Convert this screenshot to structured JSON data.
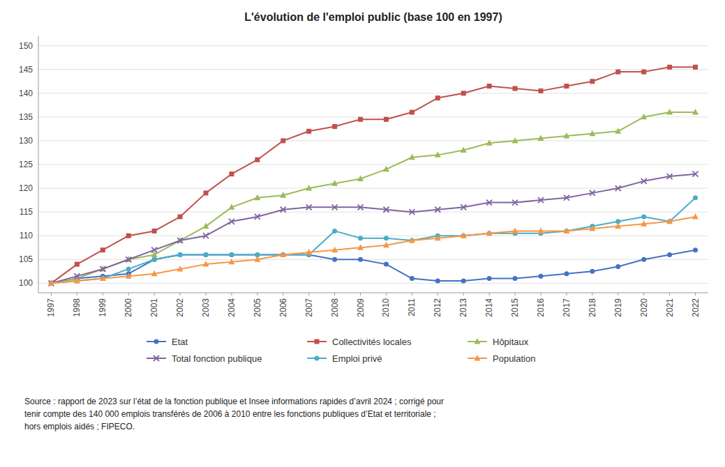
{
  "chart_data": {
    "type": "line",
    "title": "L'évolution de l'emploi public (base 100 en 1997)",
    "x": [
      1997,
      1998,
      1999,
      2000,
      2001,
      2002,
      2003,
      2004,
      2005,
      2006,
      2007,
      2008,
      2009,
      2010,
      2011,
      2012,
      2013,
      2014,
      2015,
      2016,
      2017,
      2018,
      2019,
      2020,
      2021,
      2022
    ],
    "xlim": [
      1996.5,
      2022.5
    ],
    "xticks": [
      1997,
      1998,
      1999,
      2000,
      2001,
      2002,
      2003,
      2004,
      2005,
      2006,
      2007,
      2008,
      2009,
      2010,
      2011,
      2012,
      2013,
      2014,
      2015,
      2016,
      2017,
      2018,
      2019,
      2020,
      2021,
      2022
    ],
    "ylim": [
      98,
      152
    ],
    "yticks": [
      100,
      105,
      110,
      115,
      120,
      125,
      130,
      135,
      140,
      145,
      150
    ],
    "grid": true,
    "legend": "bottom",
    "series": [
      {
        "name": "Etat",
        "color": "#4472C4",
        "marker": "circle",
        "values": [
          100,
          101,
          101.5,
          102,
          105,
          106,
          106,
          106,
          106,
          106,
          106,
          105,
          105,
          104,
          101,
          100.5,
          100.5,
          101,
          101,
          101.5,
          102,
          102.5,
          103.5,
          105,
          106,
          107
        ]
      },
      {
        "name": "Collectivités locales",
        "color": "#C0504D",
        "marker": "square",
        "values": [
          100,
          104,
          107,
          110,
          111,
          114,
          119,
          123,
          126,
          130,
          132,
          133,
          134.5,
          134.5,
          136,
          139,
          140,
          141.5,
          141,
          140.5,
          141.5,
          142.5,
          144.5,
          144.5,
          145.5,
          145.5
        ]
      },
      {
        "name": "Hôpitaux",
        "color": "#9BBB59",
        "marker": "triangle",
        "values": [
          100,
          101,
          103,
          105,
          106,
          109,
          112,
          116,
          118,
          118.5,
          120,
          121,
          122,
          124,
          126.5,
          127,
          128,
          129.5,
          130,
          130.5,
          131,
          131.5,
          132,
          135,
          136,
          136
        ]
      },
      {
        "name": "Total fonction publique",
        "color": "#8064A2",
        "marker": "cross",
        "values": [
          100,
          101.5,
          103,
          105,
          107,
          109,
          110,
          113,
          114,
          115.5,
          116,
          116,
          116,
          115.5,
          115,
          115.5,
          116,
          117,
          117,
          117.5,
          118,
          119,
          120,
          121.5,
          122.5,
          123
        ]
      },
      {
        "name": "Emploi privé",
        "color": "#4BACC6",
        "marker": "circle",
        "values": [
          100,
          100.5,
          101,
          103,
          105,
          106,
          106,
          106,
          106,
          106,
          106,
          111,
          109.5,
          109.5,
          109,
          110,
          110,
          110.5,
          110.5,
          110.5,
          111,
          112,
          113,
          114,
          113,
          118
        ]
      },
      {
        "name": "Population",
        "color": "#F79646",
        "marker": "triangle",
        "values": [
          100,
          100.5,
          101,
          101.5,
          102,
          103,
          104,
          104.5,
          105,
          106,
          106.5,
          107,
          107.5,
          108,
          109,
          109.5,
          110,
          110.5,
          111,
          111,
          111,
          111.5,
          112,
          112.5,
          113,
          114
        ]
      }
    ],
    "annotations": [
      "Source : rapport de 2023 sur l’état de la fonction publique et Insee informations rapides d’avril 2024 ; corrigé pour\ntenir compte des 140 000 emplois transférés de 2006 à 2010 entre les fonctions publiques d’Etat et territoriale ;\nhors emplois aidés ; FIPECO."
    ]
  }
}
